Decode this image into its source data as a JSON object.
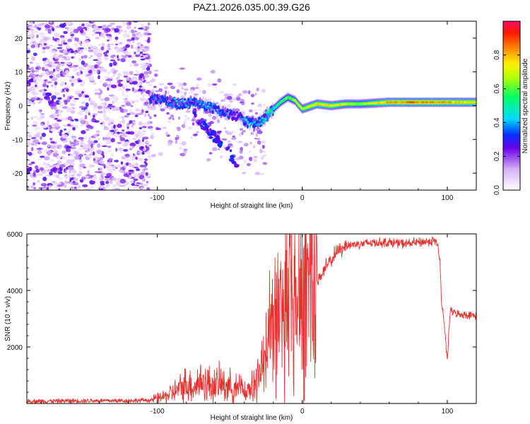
{
  "chart_data": [
    {
      "type": "heatmap",
      "title": "PAZ1.2026.035.00.39.G26",
      "xlabel": "Height of straight line (km)",
      "ylabel": "Frequency (Hz)",
      "xlim": [
        -190,
        120
      ],
      "ylim": [
        -25,
        25
      ],
      "xticks": [
        -100,
        0,
        100
      ],
      "xtick_labels": [
        "-100",
        "0",
        "100"
      ],
      "yticks": [
        -20,
        -10,
        0,
        10,
        20
      ],
      "ytick_labels": [
        "-20",
        "-10",
        "0",
        "10",
        "20"
      ],
      "grid": false,
      "colorbar": {
        "label": "Normalized spectral amplitude",
        "range": [
          0,
          1
        ],
        "ticks": [
          0.0,
          0.2,
          0.4,
          0.6,
          0.8
        ],
        "tick_labels": [
          "0.0",
          "0.2",
          "0.4",
          "0.6",
          "0.8"
        ]
      },
      "signal_ridge": {
        "x": [
          -105,
          -95,
          -85,
          -75,
          -65,
          -55,
          -45,
          -38,
          -30,
          -25,
          -20,
          -15,
          -10,
          -5,
          0,
          10,
          20,
          30,
          40,
          60,
          80,
          100,
          120
        ],
        "y": [
          2,
          1.5,
          0.5,
          1,
          0,
          -2,
          -3,
          -5,
          -5,
          -3,
          -1,
          1,
          2.5,
          1.5,
          -1,
          0.5,
          0,
          0.5,
          0.5,
          1,
          1,
          1,
          1
        ],
        "amplitude": [
          0.35,
          0.35,
          0.4,
          0.35,
          0.4,
          0.35,
          0.3,
          0.4,
          0.4,
          0.5,
          0.5,
          0.55,
          0.6,
          0.65,
          0.7,
          0.75,
          0.75,
          0.7,
          0.65,
          0.8,
          0.85,
          0.8,
          0.75
        ]
      },
      "noise_region": {
        "x": [
          -190,
          -105
        ],
        "y": [
          -25,
          25
        ],
        "amplitude": [
          0,
          0.25
        ]
      }
    },
    {
      "type": "line",
      "xlabel": "Height of straight line (km)",
      "ylabel": "SNR (10 * v/v)",
      "xlim": [
        -190,
        120
      ],
      "ylim": [
        0,
        6000
      ],
      "xticks": [
        -100,
        0,
        100
      ],
      "xtick_labels": [
        "-100",
        "0",
        "100"
      ],
      "yticks": [
        2000,
        4000,
        6000
      ],
      "ytick_labels": [
        "2000",
        "4000",
        "6000"
      ],
      "grid": false,
      "series": [
        {
          "name": "SNR",
          "color": "#e8302c",
          "x": [
            -190,
            -150,
            -120,
            -105,
            -95,
            -85,
            -80,
            -75,
            -70,
            -65,
            -60,
            -55,
            -50,
            -45,
            -42,
            -38,
            -35,
            -32,
            -30,
            -27,
            -25,
            -22,
            -20,
            -15,
            -10,
            -5,
            0,
            5,
            10,
            15,
            20,
            25,
            30,
            40,
            50,
            60,
            70,
            80,
            90,
            93,
            95,
            96,
            97,
            100,
            102,
            105,
            110,
            120
          ],
          "y": [
            80,
            100,
            100,
            120,
            250,
            500,
            700,
            600,
            800,
            700,
            650,
            700,
            600,
            500,
            400,
            300,
            600,
            800,
            1000,
            1300,
            1900,
            2600,
            2900,
            3100,
            3300,
            3700,
            4100,
            4100,
            4300,
            4700,
            5100,
            5400,
            5600,
            5650,
            5700,
            5700,
            5650,
            5700,
            5750,
            5700,
            5000,
            3500,
            3300,
            1500,
            3300,
            3200,
            3150,
            3100
          ]
        }
      ]
    }
  ]
}
